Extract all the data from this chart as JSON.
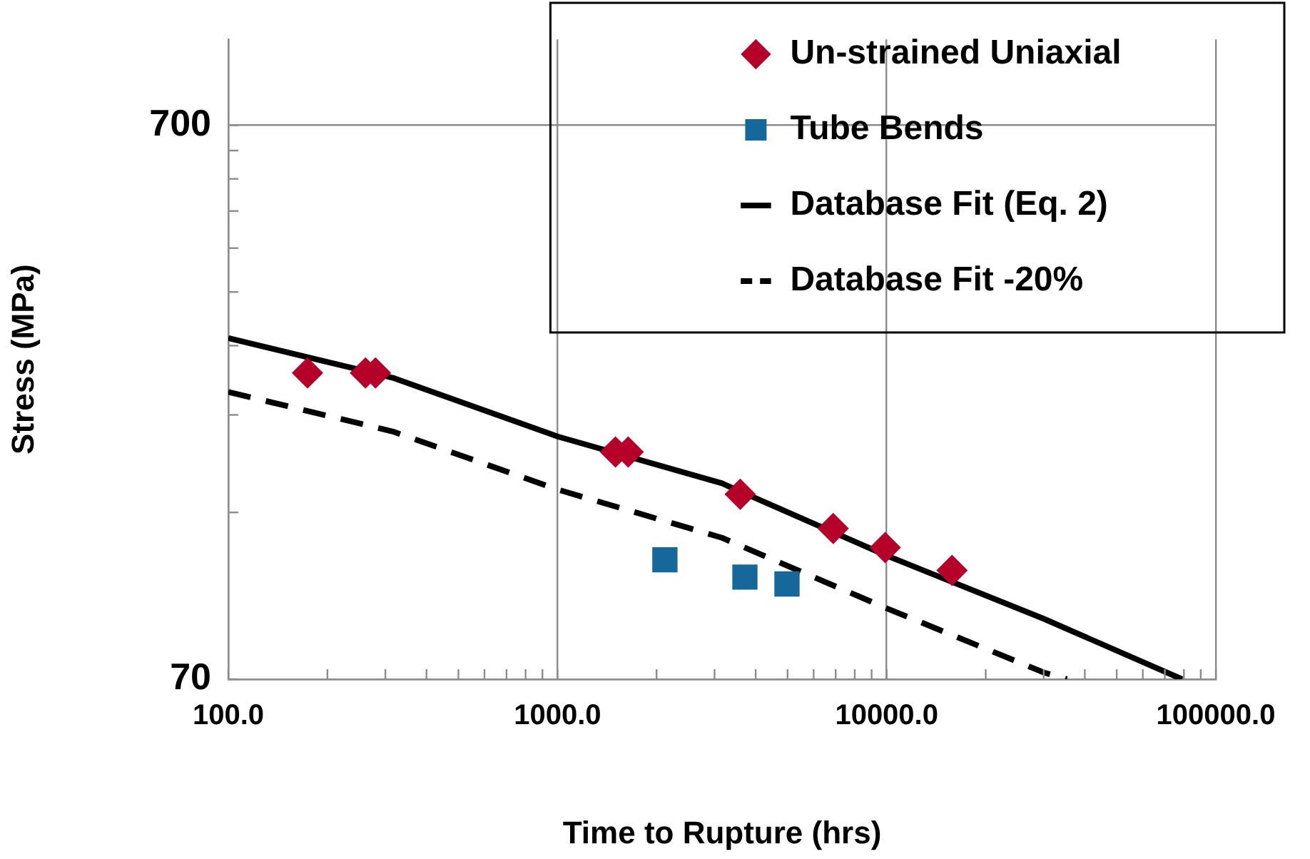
{
  "chart_data": {
    "type": "scatter",
    "xlabel": "Time to Rupture (hrs)",
    "ylabel": "Stress (MPa)",
    "log": "xy",
    "grid": true,
    "legend": "top right",
    "xlim": [
      100,
      100000
    ],
    "xticks": [
      {
        "value": 100,
        "label": "100.0"
      },
      {
        "value": 200,
        "label": null
      },
      {
        "value": 300,
        "label": null
      },
      {
        "value": 400,
        "label": null
      },
      {
        "value": 500,
        "label": null
      },
      {
        "value": 600,
        "label": null
      },
      {
        "value": 700,
        "label": null
      },
      {
        "value": 800,
        "label": null
      },
      {
        "value": 900,
        "label": null
      },
      {
        "value": 1000,
        "label": "1000.0"
      },
      {
        "value": 2000,
        "label": null
      },
      {
        "value": 3000,
        "label": null
      },
      {
        "value": 4000,
        "label": null
      },
      {
        "value": 5000,
        "label": null
      },
      {
        "value": 6000,
        "label": null
      },
      {
        "value": 7000,
        "label": null
      },
      {
        "value": 8000,
        "label": null
      },
      {
        "value": 9000,
        "label": null
      },
      {
        "value": 10000,
        "label": "10000.0"
      },
      {
        "value": 20000,
        "label": null
      },
      {
        "value": 30000,
        "label": null
      },
      {
        "value": 40000,
        "label": null
      },
      {
        "value": 50000,
        "label": null
      },
      {
        "value": 60000,
        "label": null
      },
      {
        "value": 70000,
        "label": null
      },
      {
        "value": 80000,
        "label": null
      },
      {
        "value": 90000,
        "label": null
      },
      {
        "value": 100000,
        "label": "100000.0"
      }
    ],
    "ylim": [
      70,
      1000
    ],
    "yticks": [
      70,
      {
        "value": 140,
        "label": null
      },
      {
        "value": 210,
        "label": null
      },
      {
        "value": 280,
        "label": null
      },
      {
        "value": 350,
        "label": null
      },
      {
        "value": 420,
        "label": null
      },
      {
        "value": 490,
        "label": null
      },
      {
        "value": 560,
        "label": null
      },
      {
        "value": 630,
        "label": null
      },
      700
    ],
    "series": [
      {
        "name": "Un-strained Uniaxial",
        "marker": "diamond",
        "color": "#b5002a",
        "x": [
          174,
          261,
          280,
          1500,
          1640,
          3590,
          6880,
          9900,
          15800
        ],
        "values": [
          250,
          250,
          250,
          180,
          180,
          151,
          131,
          121,
          110
        ]
      },
      {
        "name": "Tube Bends",
        "marker": "square",
        "color": "#16689b",
        "x": [
          2120,
          3710,
          4980
        ],
        "values": [
          115,
          107,
          104
        ]
      },
      {
        "name": "Database Fit (Eq. 2)",
        "type": "line",
        "marker": "none",
        "line_style": "solid",
        "color": "#000000",
        "x": [
          100,
          316,
          1000,
          3160,
          10000,
          30000,
          79000
        ],
        "values": [
          289,
          245,
          192,
          158,
          117,
          90,
          70
        ]
      },
      {
        "name": "Database Fit -20%",
        "type": "line",
        "marker": "none",
        "line_style": "dashed",
        "color": "#000000",
        "x": [
          100,
          316,
          1000,
          3160,
          10000,
          30000,
          35300
        ],
        "values": [
          231,
          196,
          154,
          126,
          94,
          72,
          70
        ]
      }
    ]
  }
}
